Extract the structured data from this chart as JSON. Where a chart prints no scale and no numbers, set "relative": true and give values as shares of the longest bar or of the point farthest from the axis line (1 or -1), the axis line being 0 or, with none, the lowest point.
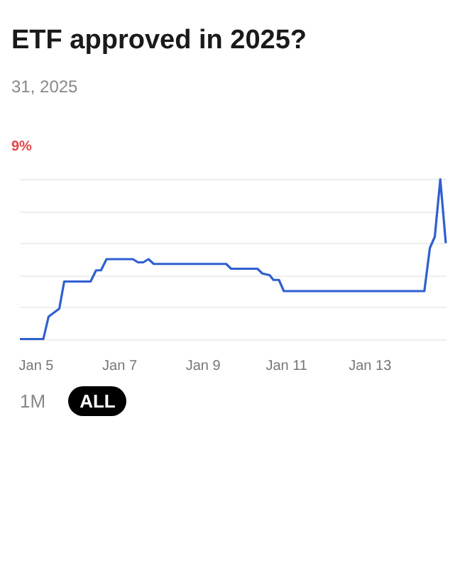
{
  "chart_data": {
    "type": "line",
    "title": "ETF approved in 2025?",
    "subtitle": "31, 2025",
    "annotations": [
      "9%",
      "1M",
      "ALL"
    ],
    "relative": true,
    "grid": "y",
    "marker": "none",
    "line_style": "solid",
    "x": [
      "2025-01-04T15:00",
      "2025-01-05T04:30",
      "2025-01-05T07:30",
      "2025-01-05T13:40",
      "2025-01-05T16:30",
      "2025-01-06T07:40",
      "2025-01-06T10:50",
      "2025-01-06T13:40",
      "2025-01-06T16:50",
      "2025-01-07T08:00",
      "2025-01-07T11:00",
      "2025-01-07T14:00",
      "2025-01-07T17:00",
      "2025-01-07T20:00",
      "2025-01-09T13:40",
      "2025-01-09T16:30",
      "2025-01-10T07:40",
      "2025-01-10T10:30",
      "2025-01-10T14:40",
      "2025-01-10T16:50",
      "2025-01-10T20:00",
      "2025-01-10T22:50",
      "2025-01-14T07:40",
      "2025-01-14T10:50",
      "2025-01-14T13:40",
      "2025-01-14T16:50",
      "2025-01-14T20:00"
    ],
    "xlim": [
      "2025-01-04T15:00",
      "2025-01-14T20:00"
    ],
    "xticks": [
      {
        "value": "2025-01-05",
        "label": "Jan 5"
      },
      {
        "value": "2025-01-07",
        "label": "Jan 7"
      },
      {
        "value": "2025-01-09",
        "label": "Jan 9"
      },
      {
        "value": "2025-01-11",
        "label": "Jan 11"
      },
      {
        "value": "2025-01-13",
        "label": "Jan 13"
      }
    ],
    "series": [
      {
        "color": "#2f5fd0",
        "values": [
          0,
          0,
          0.14,
          0.19,
          0.36,
          0.36,
          0.43,
          0.43,
          0.5,
          0.5,
          0.48,
          0.48,
          0.5,
          0.47,
          0.47,
          0.44,
          0.44,
          0.41,
          0.4,
          0.37,
          0.37,
          0.3,
          0.3,
          0.57,
          0.64,
          1,
          0.6
        ]
      }
    ]
  }
}
